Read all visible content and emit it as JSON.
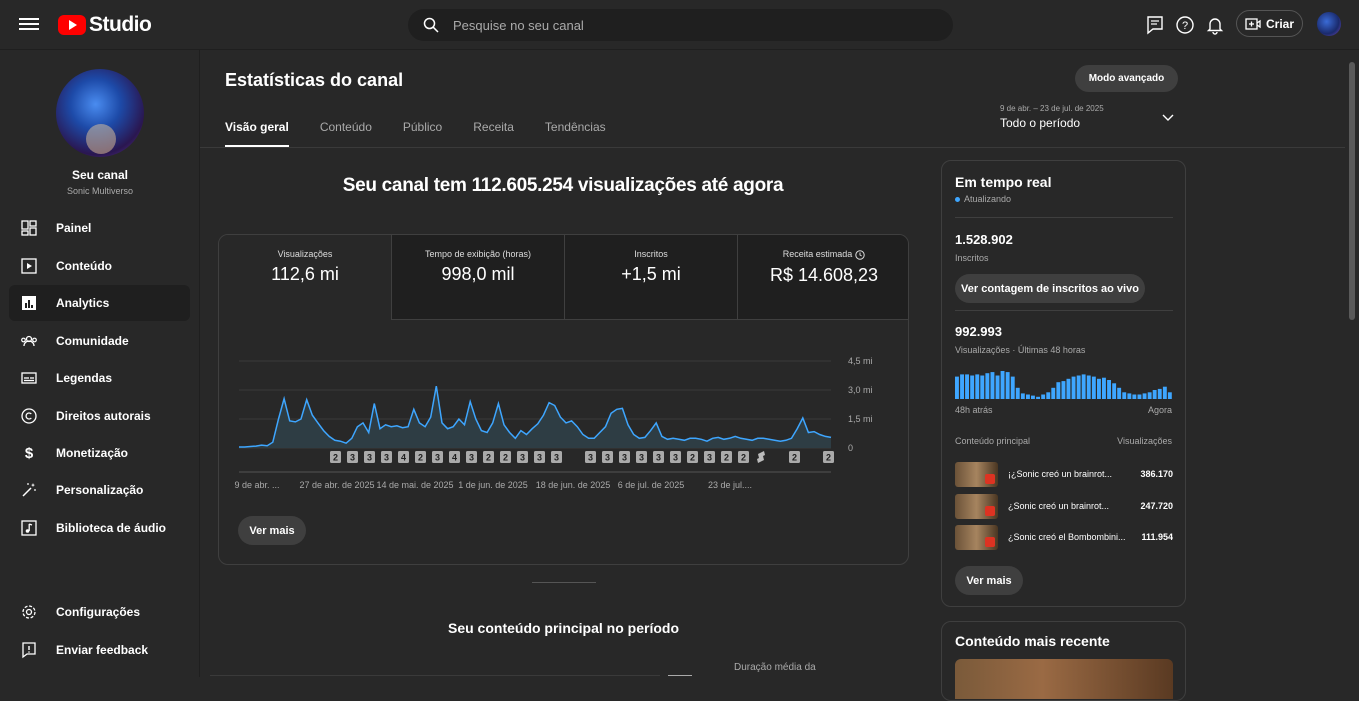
{
  "header": {
    "app_name": "Studio",
    "search_placeholder": "Pesquise no seu canal",
    "create_label": "Criar"
  },
  "sidebar": {
    "channel_name": "Seu canal",
    "channel_handle": "Sonic Multiverso",
    "items": [
      {
        "label": "Painel",
        "icon": "dashboard-icon"
      },
      {
        "label": "Conteúdo",
        "icon": "content-icon"
      },
      {
        "label": "Analytics",
        "icon": "analytics-icon",
        "active": true
      },
      {
        "label": "Comunidade",
        "icon": "community-icon"
      },
      {
        "label": "Legendas",
        "icon": "subtitles-icon"
      },
      {
        "label": "Direitos autorais",
        "icon": "copyright-icon"
      },
      {
        "label": "Monetização",
        "icon": "dollar-icon"
      },
      {
        "label": "Personalização",
        "icon": "magic-wand-icon"
      },
      {
        "label": "Biblioteca de áudio",
        "icon": "audio-library-icon"
      }
    ],
    "bottom": [
      {
        "label": "Configurações",
        "icon": "gear-icon"
      },
      {
        "label": "Enviar feedback",
        "icon": "feedback-icon"
      }
    ]
  },
  "page": {
    "title": "Estatísticas do canal",
    "advanced_mode": "Modo avançado",
    "tabs": [
      "Visão geral",
      "Conteúdo",
      "Público",
      "Receita",
      "Tendências"
    ],
    "period": {
      "dates": "9 de abr. – 23 de jul. de 2025",
      "value": "Todo o período"
    },
    "headline": "Seu canal tem 112.605.254 visualizações até agora",
    "metrics": [
      {
        "label": "Visualizações",
        "value": "112,6 mi"
      },
      {
        "label": "Tempo de exibição (horas)",
        "value": "998,0 mil"
      },
      {
        "label": "Inscritos",
        "value": "+1,5 mi"
      },
      {
        "label": "Receita estimada",
        "value": "R$ 14.608,23"
      }
    ],
    "see_more": "Ver mais",
    "top_content_title": "Seu conteúdo principal no período",
    "avg_duration_label": "Duração média da"
  },
  "chart_data": {
    "type": "area",
    "ylabel": "",
    "yticks": [
      "4,5 mi",
      "3,0 mi",
      "1,5 mi",
      "0"
    ],
    "ylim": [
      0,
      4500000
    ],
    "xticks": [
      "9 de abr. ...",
      "27 de abr. de 2025",
      "14 de mai. de 2025",
      "1 de jun. de 2025",
      "18 de jun. de 2025",
      "6 de jul. de 2025",
      "23 de jul...."
    ],
    "values": [
      0.05,
      0.05,
      0.08,
      0.1,
      0.15,
      0.12,
      0.3,
      1.5,
      2.55,
      1.4,
      1.35,
      1.5,
      2.5,
      1.7,
      1.3,
      0.9,
      0.6,
      0.4,
      0.35,
      0.25,
      0.5,
      1.1,
      1.3,
      0.8,
      2.3,
      1.0,
      1.2,
      1.1,
      1.15,
      1.05,
      1.1,
      2.0,
      1.3,
      1.1,
      1.6,
      3.2,
      1.3,
      1.0,
      1.1,
      1.5,
      1.2,
      2.4,
      1.5,
      0.9,
      0.8,
      1.3,
      2.3,
      1.2,
      0.8,
      0.5,
      0.9,
      0.7,
      1.0,
      1.25,
      1.7,
      2.35,
      2.2,
      1.6,
      1.3,
      1.4,
      1.1,
      0.7,
      0.5,
      0.5,
      0.8,
      1.1,
      1.8,
      2.0,
      2.05,
      1.2,
      0.7,
      0.5,
      0.55,
      0.9,
      1.3,
      0.6,
      0.45,
      0.5,
      0.45,
      0.4,
      0.5,
      0.5,
      0.45,
      0.35,
      0.5,
      0.55,
      0.45,
      0.5,
      0.6,
      0.5,
      0.45,
      0.4,
      0.5,
      0.5,
      0.45,
      0.4,
      0.35,
      0.4,
      0.5,
      1.0,
      1.55,
      0.8,
      0.85,
      0.7,
      0.6,
      0.55
    ],
    "value_unit": "mi",
    "markers": [
      "2",
      "3",
      "3",
      "3",
      "4",
      "2",
      "3",
      "4",
      "3",
      "2",
      "2",
      "3",
      "3",
      "3",
      "",
      "3",
      "3",
      "3",
      "3",
      "3",
      "3",
      "2",
      "3",
      "2",
      "2",
      "shorts",
      "",
      "2",
      "",
      "2"
    ]
  },
  "realtime": {
    "title": "Em tempo real",
    "status": "Atualizando",
    "subs_value": "1.528.902",
    "subs_label": "Inscritos",
    "subs_button": "Ver contagem de inscritos ao vivo",
    "views_value": "992.993",
    "views_label": "Visualizações · Últimas 48 horas",
    "bars": [
      20,
      22,
      22,
      21,
      22,
      21,
      23,
      24,
      21,
      25,
      24,
      20,
      10,
      5,
      4,
      3,
      2,
      4,
      6,
      10,
      15,
      16,
      18,
      20,
      21,
      22,
      21,
      20,
      18,
      19,
      17,
      14,
      10,
      6,
      5,
      4,
      4,
      5,
      6,
      8,
      9,
      11,
      6
    ],
    "axis_left": "48h atrás",
    "axis_right": "Agora",
    "col_content": "Conteúdo principal",
    "col_views": "Visualizações",
    "rows": [
      {
        "title": "¡¿Sonic creó un brainrot...",
        "views": "386.170"
      },
      {
        "title": "¿Sonic creó un brainrot...",
        "views": "247.720"
      },
      {
        "title": "¿Sonic creó el Bombombini...",
        "views": "111.954"
      }
    ],
    "see_more": "Ver mais"
  },
  "recent": {
    "title": "Conteúdo mais recente"
  },
  "colors": {
    "accent": "#3ea6ff",
    "bg": "#282828",
    "card_bg": "#1f1f1f",
    "brand": "#ff0000"
  }
}
